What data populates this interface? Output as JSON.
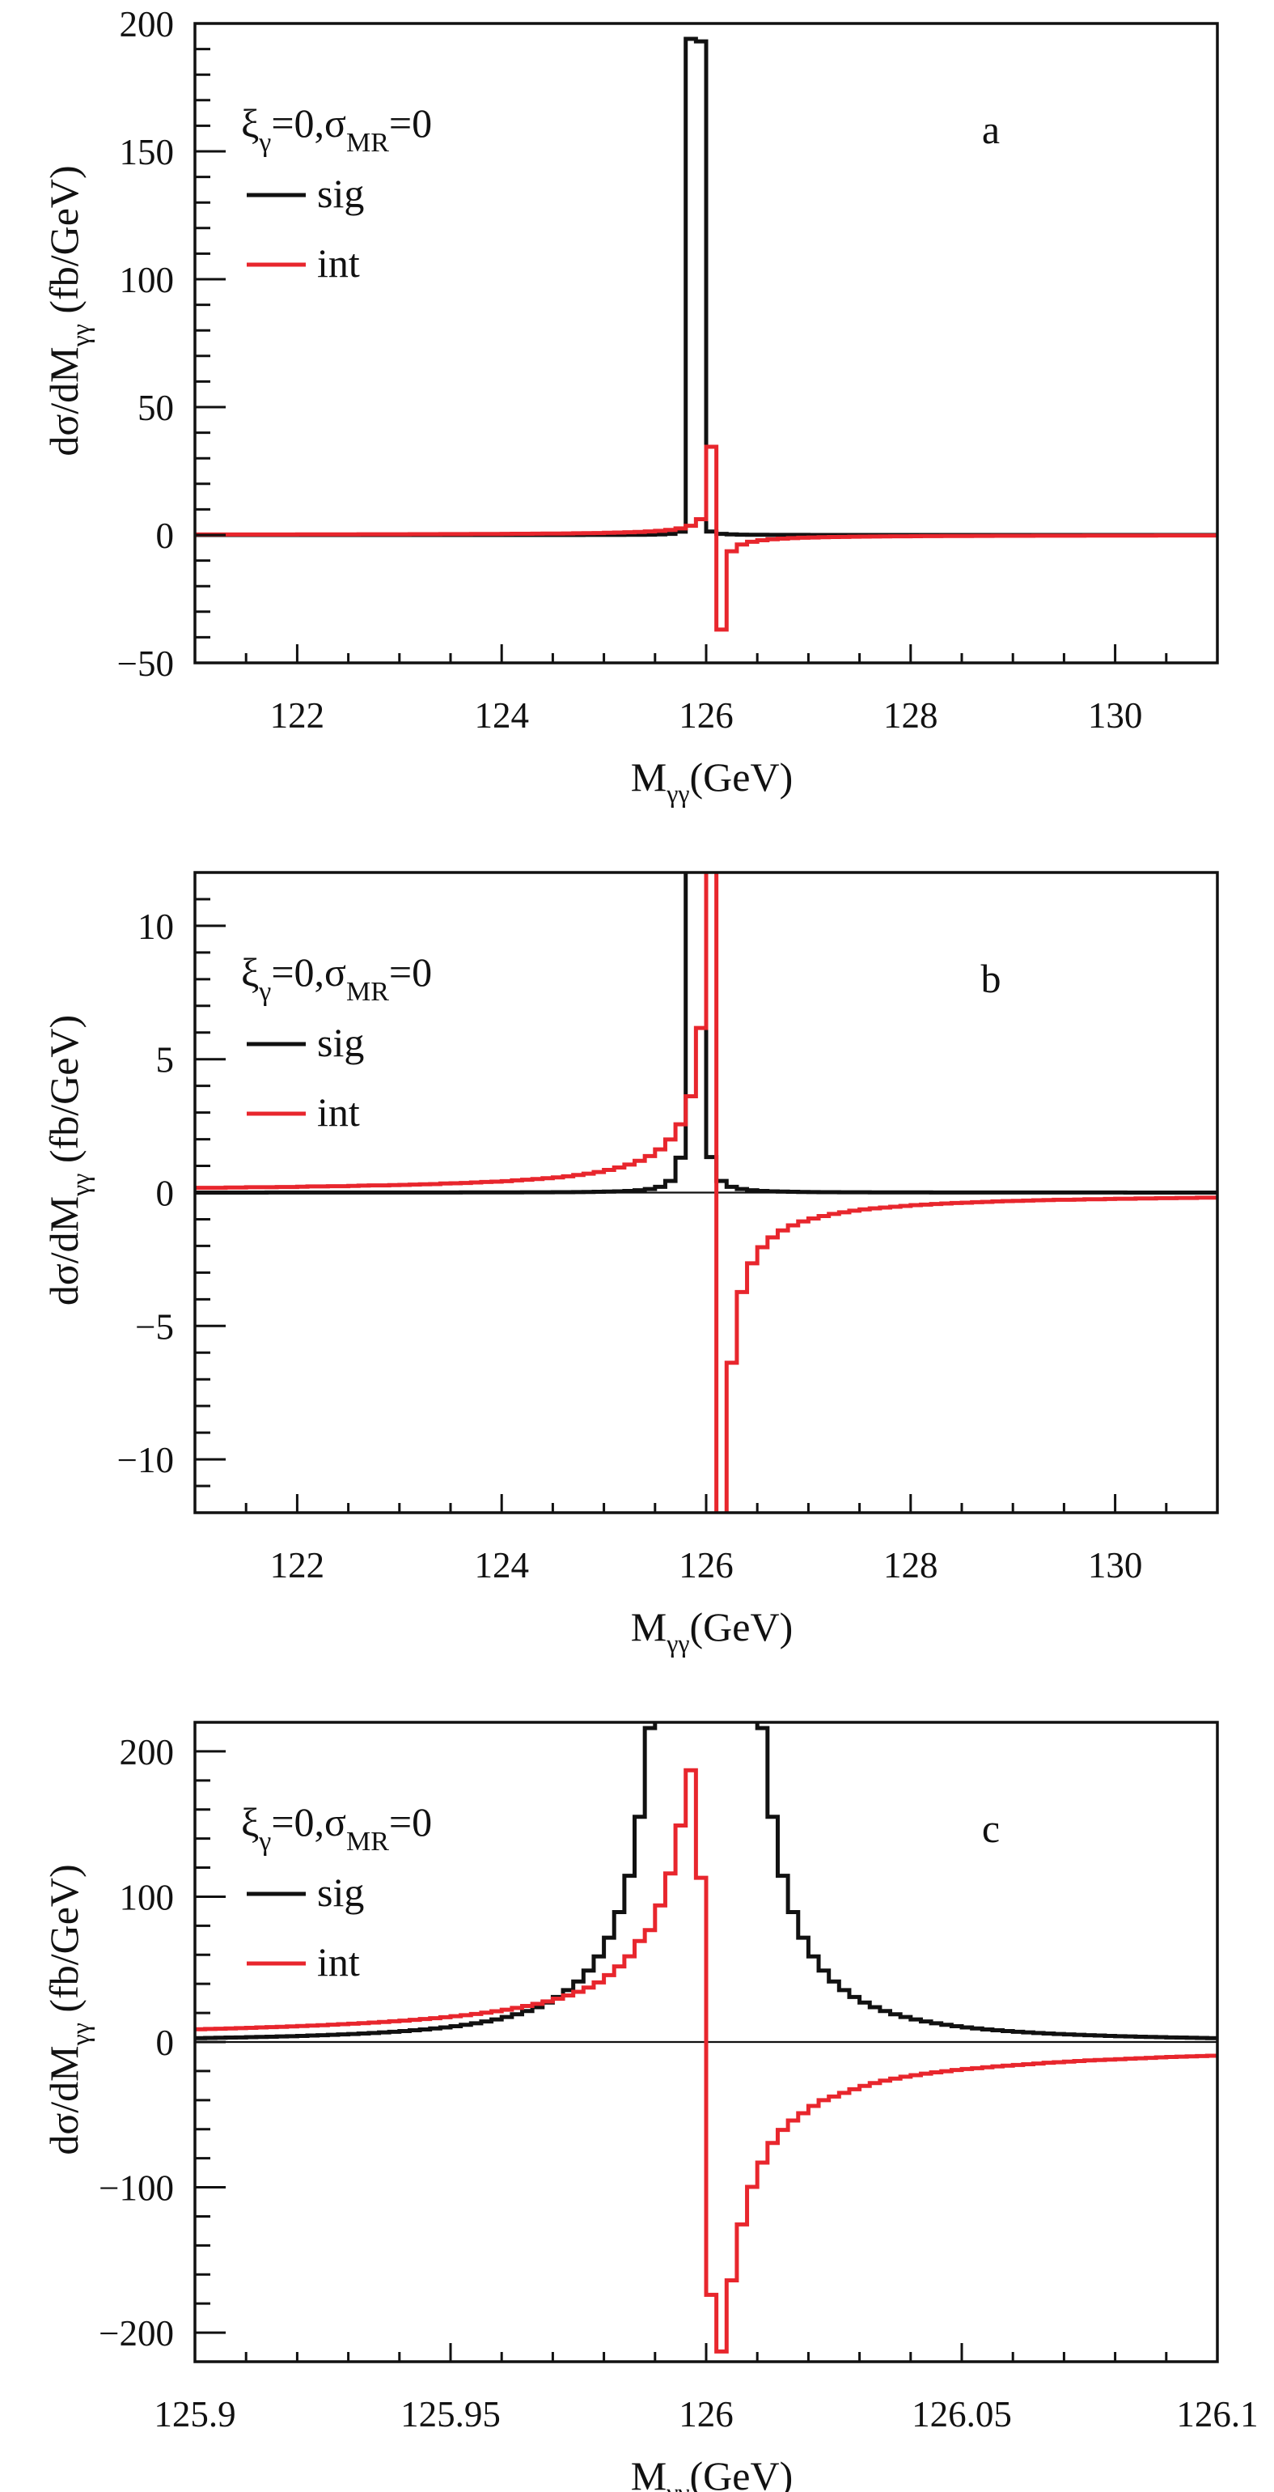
{
  "chart_data": [
    {
      "type": "line",
      "style": "step-histogram",
      "panel_label": "a",
      "xlabel": "M",
      "xlabel_sub": "γγ",
      "xlabel_unit": "(GeV)",
      "ylabel": "dσ/dM",
      "ylabel_sub": "γγ",
      "ylabel_unit": "(fb/GeV)",
      "legend_title": {
        "xi": "ξ",
        "xi_sub": "γ",
        "mid": "=0,σ",
        "sigma_sub": "MR",
        "end": "=0"
      },
      "legend_placement": "top-left",
      "xlim": [
        121,
        131
      ],
      "ylim": [
        -50,
        200
      ],
      "x_major_step": 2,
      "x_minor_step": 0.5,
      "y_major_step": 50,
      "y_minor_step": 10,
      "xticks": [
        122,
        124,
        126,
        128,
        130
      ],
      "xtick_labels": [
        "122",
        "124",
        "126",
        "128",
        "130"
      ],
      "yticks": [
        -50,
        0,
        50,
        100,
        150,
        200
      ],
      "ytick_labels": [
        "−50",
        "0",
        "50",
        "100",
        "150",
        "200"
      ],
      "show_zero_line": false,
      "bin_start": 121,
      "bin_width": 0.1,
      "series": [
        {
          "name": "sig",
          "color": "#111111",
          "values": "sig_coarse"
        },
        {
          "name": "int",
          "color": "#e8262d",
          "values": "int_coarse"
        }
      ]
    },
    {
      "type": "line",
      "style": "step-histogram",
      "panel_label": "b",
      "xlabel": "M",
      "xlabel_sub": "γγ",
      "xlabel_unit": "(GeV)",
      "ylabel": "dσ/dM",
      "ylabel_sub": "γγ",
      "ylabel_unit": "(fb/GeV)",
      "legend_title": {
        "xi": "ξ",
        "xi_sub": "γ",
        "mid": "=0,σ",
        "sigma_sub": "MR",
        "end": "=0"
      },
      "legend_placement": "top-left",
      "xlim": [
        121,
        131
      ],
      "ylim": [
        -12,
        12
      ],
      "x_major_step": 2,
      "x_minor_step": 0.5,
      "y_major_step": 5,
      "y_minor_step": 1,
      "xticks": [
        122,
        124,
        126,
        128,
        130
      ],
      "xtick_labels": [
        "122",
        "124",
        "126",
        "128",
        "130"
      ],
      "yticks": [
        -10,
        -5,
        0,
        5,
        10
      ],
      "ytick_labels": [
        "−10",
        "−5",
        "0",
        "5",
        "10"
      ],
      "show_zero_line": true,
      "bin_start": 121,
      "bin_width": 0.1,
      "series": [
        {
          "name": "sig",
          "color": "#111111",
          "values": "sig_coarse"
        },
        {
          "name": "int",
          "color": "#e8262d",
          "values": "int_coarse"
        }
      ]
    },
    {
      "type": "line",
      "style": "step-histogram",
      "panel_label": "c",
      "xlabel": "M",
      "xlabel_sub": "γγ",
      "xlabel_unit": "(GeV)",
      "ylabel": "dσ/dM",
      "ylabel_sub": "γγ",
      "ylabel_unit": "(fb/GeV)",
      "legend_title": {
        "xi": "ξ",
        "xi_sub": "γ",
        "mid": "=0,σ",
        "sigma_sub": "MR",
        "end": "=0"
      },
      "legend_placement": "top-left",
      "xlim": [
        125.9,
        126.1
      ],
      "ylim": [
        -220,
        220
      ],
      "x_major_step": 0.05,
      "x_minor_step": 0.01,
      "y_major_step": 100,
      "y_minor_step": 20,
      "xticks": [
        125.9,
        125.95,
        126,
        126.05,
        126.1
      ],
      "xtick_labels": [
        "125.9",
        "125.95",
        "126",
        "126.05",
        "126.1"
      ],
      "yticks": [
        -200,
        -100,
        0,
        100,
        200
      ],
      "ytick_labels": [
        "−200",
        "−100",
        "0",
        "100",
        "200"
      ],
      "show_zero_line": true,
      "bin_start": 125.9,
      "bin_width": 0.002,
      "series": [
        {
          "name": "sig",
          "color": "#111111",
          "values": "sig_fine"
        },
        {
          "name": "int",
          "color": "#e8262d",
          "values": "int_fine"
        }
      ]
    }
  ],
  "bins": {
    "sig_coarse": [
      0.001,
      0.001,
      0.001,
      0.001,
      0.001,
      0.001,
      0.001,
      0.002,
      0.002,
      0.002,
      0.002,
      0.002,
      0.002,
      0.002,
      0.002,
      0.002,
      0.003,
      0.003,
      0.003,
      0.003,
      0.003,
      0.004,
      0.004,
      0.004,
      0.005,
      0.005,
      0.006,
      0.006,
      0.007,
      0.007,
      0.008,
      0.009,
      0.01,
      0.011,
      0.013,
      0.014,
      0.017,
      0.02,
      0.024,
      0.029,
      0.036,
      0.047,
      0.062,
      0.087,
      0.131,
      0.218,
      0.437,
      1.31,
      194,
      193,
      1.33,
      0.437,
      0.218,
      0.131,
      0.087,
      0.062,
      0.047,
      0.036,
      0.029,
      0.024,
      0.02,
      0.017,
      0.014,
      0.013,
      0.011,
      0.01,
      0.009,
      0.008,
      0.007,
      0.007,
      0.006,
      0.006,
      0.005,
      0.005,
      0.004,
      0.004,
      0.004,
      0.003,
      0.003,
      0.003,
      0.003,
      0.003,
      0.002,
      0.002,
      0.002,
      0.002,
      0.002,
      0.002,
      0.002,
      0.002,
      0.002,
      0.001,
      0.001,
      0.001,
      0.001,
      0.001,
      0.001,
      0.001,
      0.001,
      0.001
    ],
    "int_coarse": [
      0.18,
      0.18,
      0.18,
      0.19,
      0.19,
      0.2,
      0.2,
      0.2,
      0.21,
      0.21,
      0.22,
      0.23,
      0.23,
      0.24,
      0.24,
      0.25,
      0.26,
      0.27,
      0.27,
      0.28,
      0.29,
      0.3,
      0.31,
      0.32,
      0.34,
      0.35,
      0.36,
      0.38,
      0.4,
      0.41,
      0.43,
      0.46,
      0.48,
      0.51,
      0.54,
      0.57,
      0.61,
      0.66,
      0.71,
      0.77,
      0.85,
      0.94,
      1.05,
      1.19,
      1.37,
      1.62,
      1.99,
      2.56,
      3.61,
      6.17,
      34.5,
      -37,
      -6.38,
      -3.73,
      -2.65,
      -2.05,
      -1.68,
      -1.42,
      -1.23,
      -1.08,
      -0.97,
      -0.88,
      -0.8,
      -0.74,
      -0.68,
      -0.63,
      -0.59,
      -0.56,
      -0.53,
      -0.5,
      -0.47,
      -0.45,
      -0.43,
      -0.41,
      -0.39,
      -0.38,
      -0.36,
      -0.35,
      -0.33,
      -0.32,
      -0.31,
      -0.3,
      -0.29,
      -0.28,
      -0.27,
      -0.27,
      -0.26,
      -0.25,
      -0.25,
      -0.24,
      -0.23,
      -0.23,
      -0.22,
      -0.22,
      -0.21,
      -0.21,
      -0.2,
      -0.2,
      -0.19,
      -0.19
    ],
    "sig_fine": [
      2.67,
      2.78,
      2.9,
      3.03,
      3.16,
      3.31,
      3.46,
      3.62,
      3.8,
      3.99,
      4.2,
      4.42,
      4.66,
      4.91,
      5.2,
      5.5,
      5.83,
      6.2,
      6.6,
      7.03,
      7.52,
      8.05,
      8.65,
      9.31,
      10.06,
      10.89,
      11.84,
      12.91,
      14.14,
      15.55,
      17.18,
      19.08,
      21.32,
      23.97,
      27.15,
      31.0,
      35.74,
      41.65,
      49.16,
      58.88,
      71.78,
      89.42,
      114.4,
      155,
      216,
      308,
      494,
      903,
      2015,
      5240,
      5240,
      2015,
      903,
      494,
      308,
      216,
      155,
      114.4,
      89.42,
      71.78,
      58.88,
      49.16,
      41.65,
      35.74,
      31.0,
      27.15,
      23.97,
      21.32,
      19.08,
      17.18,
      15.55,
      14.14,
      12.91,
      11.84,
      10.89,
      10.06,
      9.31,
      8.65,
      8.05,
      7.52,
      7.03,
      6.6,
      6.2,
      5.83,
      5.5,
      5.2,
      4.91,
      4.66,
      4.42,
      4.2,
      3.99,
      3.8,
      3.62,
      3.46,
      3.31,
      3.16,
      3.03,
      2.9,
      2.78,
      2.67
    ],
    "int_fine": [
      8.78,
      8.96,
      9.15,
      9.35,
      9.55,
      9.77,
      9.99,
      10.23,
      10.47,
      10.73,
      11.0,
      11.29,
      11.59,
      11.91,
      12.24,
      12.6,
      12.97,
      13.37,
      13.79,
      14.24,
      14.72,
      15.24,
      15.79,
      16.39,
      17.03,
      17.72,
      18.47,
      19.29,
      20.18,
      21.16,
      22.23,
      23.43,
      24.76,
      26.24,
      27.92,
      29.82,
      32.0,
      34.52,
      37.47,
      41.0,
      46.0,
      52.0,
      59.0,
      69.5,
      77.0,
      94.0,
      116.0,
      149.0,
      187.0,
      113.0,
      -174.0,
      -213.0,
      -164.0,
      -125.5,
      -99.7,
      -83.0,
      -69.5,
      -60.5,
      -54.0,
      -49.0,
      -44.0,
      -40.0,
      -37.5,
      -35.0,
      -32.5,
      -30.2,
      -28.3,
      -26.6,
      -25.2,
      -23.9,
      -22.8,
      -21.8,
      -20.9,
      -20.1,
      -19.3,
      -18.6,
      -18.0,
      -17.4,
      -16.8,
      -16.3,
      -15.8,
      -15.3,
      -14.8,
      -14.3,
      -13.9,
      -13.5,
      -13.1,
      -12.7,
      -12.4,
      -12.1,
      -11.8,
      -11.5,
      -11.2,
      -10.9,
      -10.6,
      -10.3,
      -10.1,
      -9.9,
      -9.7,
      -9.5
    ]
  }
}
